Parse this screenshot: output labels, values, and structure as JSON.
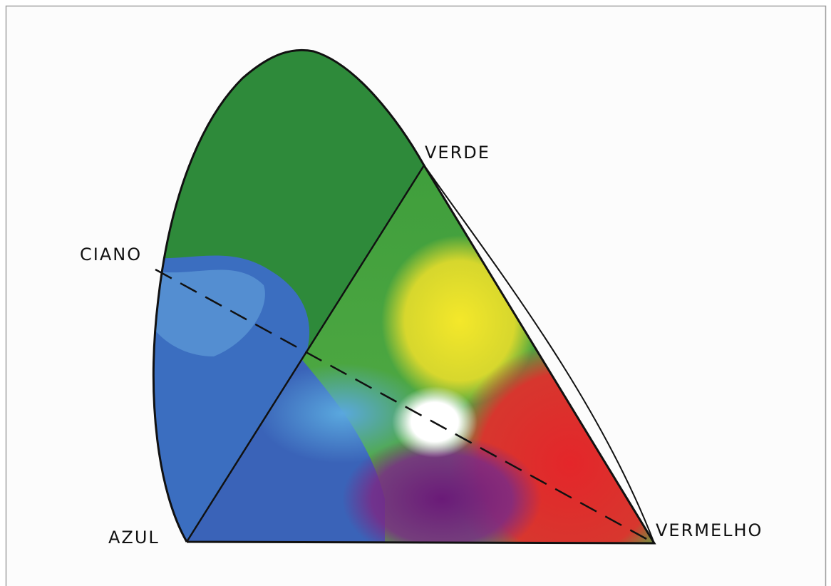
{
  "labels": {
    "verde": "VERDE",
    "ciano": "CIANO",
    "azul": "AZUL",
    "vermelho": "VERMELHO"
  }
}
